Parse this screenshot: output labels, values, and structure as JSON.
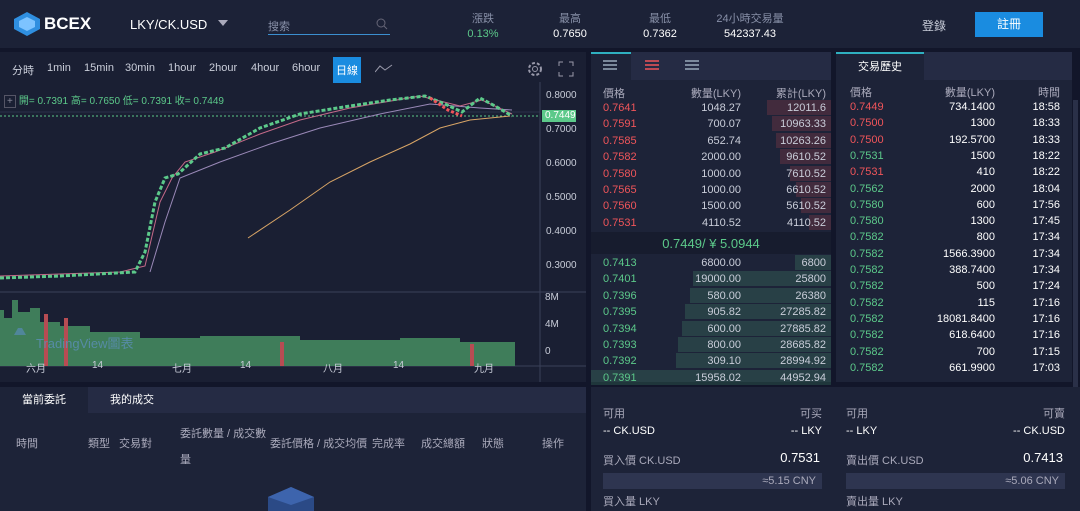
{
  "header": {
    "logo": "BCEX",
    "pair": "LKY/CK.USD",
    "search_placeholder": "搜索",
    "stats": [
      {
        "label": "漲跌",
        "value": "0.13%"
      },
      {
        "label": "最高",
        "value": "0.7650"
      },
      {
        "label": "最低",
        "value": "0.7362"
      },
      {
        "label": "24小時交易量",
        "value": "542337.43"
      }
    ],
    "login": "登錄",
    "register": "註冊"
  },
  "chart": {
    "intervals": [
      "分時",
      "1min",
      "15min",
      "30min",
      "1hour",
      "2hour",
      "4hour",
      "6hour",
      "日線"
    ],
    "active_interval": 8,
    "ohlc": "開= 0.7391 高= 0.7650 低= 0.7391 收= 0.7449",
    "price_axis": [
      "0.8000",
      "0.7000",
      "0.6000",
      "0.5000",
      "0.4000",
      "0.3000"
    ],
    "current_price": "0.7449",
    "volume_axis": [
      "8M",
      "4M",
      "0"
    ],
    "time_axis": [
      "六月",
      "14",
      "七月",
      "14",
      "八月",
      "14",
      "九月"
    ],
    "watermark": "TradingView圖表"
  },
  "order_book": {
    "headers": [
      "價格",
      "數量(LKY)",
      "累計(LKY)"
    ],
    "asks": [
      [
        "0.7641",
        "1048.27",
        "12011.6"
      ],
      [
        "0.7591",
        "700.07",
        "10963.33"
      ],
      [
        "0.7585",
        "652.74",
        "10263.26"
      ],
      [
        "0.7582",
        "2000.00",
        "9610.52"
      ],
      [
        "0.7580",
        "1000.00",
        "7610.52"
      ],
      [
        "0.7565",
        "1000.00",
        "6610.52"
      ],
      [
        "0.7560",
        "1500.00",
        "5610.52"
      ],
      [
        "0.7531",
        "4110.52",
        "4110.52"
      ]
    ],
    "last": "0.7449/ ¥ 5.0944",
    "bids": [
      [
        "0.7413",
        "6800.00",
        "6800"
      ],
      [
        "0.7401",
        "19000.00",
        "25800"
      ],
      [
        "0.7396",
        "580.00",
        "26380"
      ],
      [
        "0.7395",
        "905.82",
        "27285.82"
      ],
      [
        "0.7394",
        "600.00",
        "27885.82"
      ],
      [
        "0.7393",
        "800.00",
        "28685.82"
      ],
      [
        "0.7392",
        "309.10",
        "28994.92"
      ],
      [
        "0.7391",
        "15958.02",
        "44952.94"
      ]
    ]
  },
  "trade_history": {
    "tab": "交易歷史",
    "headers": [
      "價格",
      "數量(LKY)",
      "時間"
    ],
    "rows": [
      {
        "price": "0.7449",
        "amount": "734.1400",
        "time": "18:58",
        "side": "sell"
      },
      {
        "price": "0.7500",
        "amount": "1300",
        "time": "18:33",
        "side": "sell"
      },
      {
        "price": "0.7500",
        "amount": "192.5700",
        "time": "18:33",
        "side": "sell"
      },
      {
        "price": "0.7531",
        "amount": "1500",
        "time": "18:22",
        "side": "buy"
      },
      {
        "price": "0.7531",
        "amount": "410",
        "time": "18:22",
        "side": "sell"
      },
      {
        "price": "0.7562",
        "amount": "2000",
        "time": "18:04",
        "side": "buy"
      },
      {
        "price": "0.7580",
        "amount": "600",
        "time": "17:56",
        "side": "buy"
      },
      {
        "price": "0.7580",
        "amount": "1300",
        "time": "17:45",
        "side": "buy"
      },
      {
        "price": "0.7582",
        "amount": "800",
        "time": "17:34",
        "side": "buy"
      },
      {
        "price": "0.7582",
        "amount": "1566.3900",
        "time": "17:34",
        "side": "buy"
      },
      {
        "price": "0.7582",
        "amount": "388.7400",
        "time": "17:34",
        "side": "buy"
      },
      {
        "price": "0.7582",
        "amount": "500",
        "time": "17:24",
        "side": "buy"
      },
      {
        "price": "0.7582",
        "amount": "115",
        "time": "17:16",
        "side": "buy"
      },
      {
        "price": "0.7582",
        "amount": "18081.8400",
        "time": "17:16",
        "side": "buy"
      },
      {
        "price": "0.7582",
        "amount": "618.6400",
        "time": "17:16",
        "side": "buy"
      },
      {
        "price": "0.7582",
        "amount": "700",
        "time": "17:15",
        "side": "buy"
      },
      {
        "price": "0.7582",
        "amount": "661.9900",
        "time": "17:03",
        "side": "buy"
      }
    ]
  },
  "orders": {
    "tabs": [
      "當前委託",
      "我的成交"
    ],
    "columns": [
      "時間",
      "類型",
      "交易對",
      "委託數量 / 成交數量",
      "委託價格 / 成交均價",
      "完成率",
      "成交總額",
      "狀態",
      "操作"
    ]
  },
  "buy": {
    "available": "可用",
    "can": "可买",
    "balance_left": "-- CK.USD",
    "balance_right": "-- LKY",
    "price_label": "買入價 CK.USD",
    "price": "0.7531",
    "cny": "≈5.15 CNY",
    "amount_label": "買入量 LKY"
  },
  "sell": {
    "available": "可用",
    "can": "可賣",
    "balance_left": "-- LKY",
    "balance_right": "-- CK.USD",
    "price_label": "賣出價 CK.USD",
    "price": "0.7413",
    "cny": "≈5.06 CNY",
    "amount_label": "賣出量 LKY"
  }
}
